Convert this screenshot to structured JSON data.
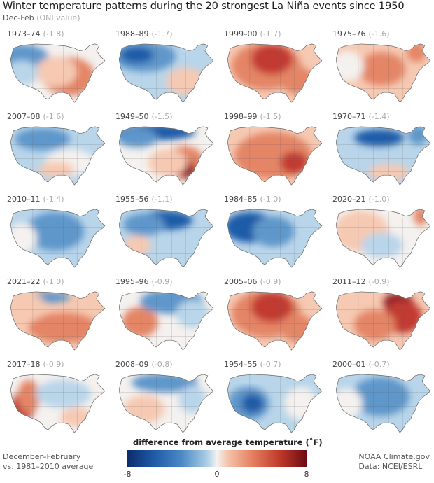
{
  "title": "Winter temperature patterns during the 20 strongest La Niña events since 1950",
  "subtitle": {
    "main": "Dec-Feb",
    "note": "(ONI value)"
  },
  "panels": [
    {
      "year": "1973–74",
      "oni": "(-1.8)",
      "pattern": "warm-se"
    },
    {
      "year": "1988–89",
      "oni": "(-1.7)",
      "pattern": "cold-nw"
    },
    {
      "year": "1999–00",
      "oni": "(-1.7)",
      "pattern": "warm-center"
    },
    {
      "year": "1975–76",
      "oni": "(-1.6)",
      "pattern": "warm-center-mild"
    },
    {
      "year": "2007–08",
      "oni": "(-1.6)",
      "pattern": "cold-north-mild"
    },
    {
      "year": "1949–50",
      "oni": "(-1.5)",
      "pattern": "cold-north-warm-se"
    },
    {
      "year": "1998–99",
      "oni": "(-1.5)",
      "pattern": "warm-all"
    },
    {
      "year": "1970–71",
      "oni": "(-1.4)",
      "pattern": "cold-north-east"
    },
    {
      "year": "2010–11",
      "oni": "(-1.4)",
      "pattern": "cold-center"
    },
    {
      "year": "1955–56",
      "oni": "(-1.1)",
      "pattern": "cold-north-strong"
    },
    {
      "year": "1984–85",
      "oni": "(-1.0)",
      "pattern": "cold-west"
    },
    {
      "year": "2020–21",
      "oni": "(-1.0)",
      "pattern": "mixed-ne-warm"
    },
    {
      "year": "2021–22",
      "oni": "(-1.0)",
      "pattern": "warm-south-cold-north"
    },
    {
      "year": "1995–96",
      "oni": "(-0.9)",
      "pattern": "warm-sw-cold-ne"
    },
    {
      "year": "2005–06",
      "oni": "(-0.9)",
      "pattern": "warm-center"
    },
    {
      "year": "2011–12",
      "oni": "(-0.9)",
      "pattern": "warm-ne"
    },
    {
      "year": "2017–18",
      "oni": "(-0.9)",
      "pattern": "warm-west-cold-center"
    },
    {
      "year": "2008–09",
      "oni": "(-0.8)",
      "pattern": "cold-north-warm-sw"
    },
    {
      "year": "1954–55",
      "oni": "(-0.7)",
      "pattern": "cold-sw"
    },
    {
      "year": "2000–01",
      "oni": "(-0.7)",
      "pattern": "cold-center"
    }
  ],
  "legend": {
    "title": "difference from average temperature (˚F)",
    "ticks": [
      "-8",
      "0",
      "8"
    ],
    "min": -8,
    "max": 8,
    "colors": [
      "#0b2c6d",
      "#4a88c4",
      "#f2f2f2",
      "#e47f5f",
      "#6e0b14"
    ]
  },
  "footer_left": [
    "December–February",
    "vs. 1981–2010 average"
  ],
  "footer_right": [
    "NOAA Climate.gov",
    "Data: NCEI/ESRL"
  ]
}
